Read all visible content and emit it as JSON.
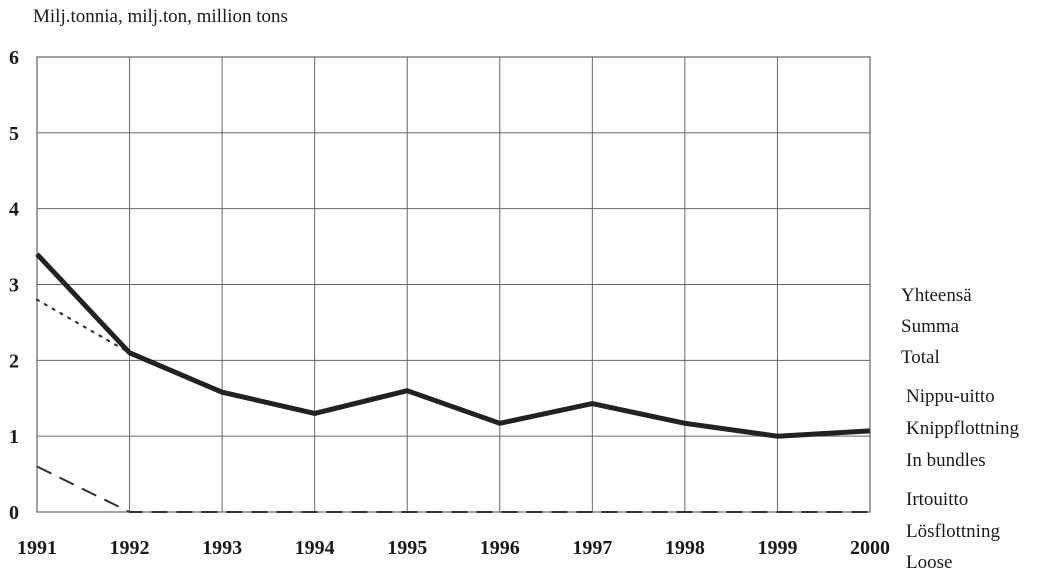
{
  "chart_data": {
    "type": "line",
    "unit_label": "Milj.tonnia, milj.ton, million tons",
    "x": [
      "1991",
      "1992",
      "1993",
      "1994",
      "1995",
      "1996",
      "1997",
      "1998",
      "1999",
      "2000"
    ],
    "yticks": [
      "0",
      "1",
      "2",
      "3",
      "4",
      "5",
      "6"
    ],
    "ylim": [
      0,
      6
    ],
    "grid": true,
    "series": [
      {
        "key": "total",
        "values": [
          3.4,
          2.1,
          1.58,
          1.3,
          1.6,
          1.17,
          1.43,
          1.17,
          1.0,
          1.07
        ],
        "style": "solid-thick",
        "color": "#222222"
      },
      {
        "key": "bundles",
        "values": [
          2.8,
          2.1,
          null,
          null,
          null,
          null,
          null,
          null,
          null,
          null
        ],
        "style": "dotted",
        "color": "#333333"
      },
      {
        "key": "loose",
        "values": [
          0.6,
          0.0,
          0.0,
          0.0,
          0.0,
          0.0,
          0.0,
          0.0,
          0.0,
          0.0
        ],
        "style": "dashed",
        "color": "#333333"
      }
    ],
    "legend": [
      {
        "key": "total",
        "lines": [
          "Yhteensä",
          "Summa",
          "Total"
        ]
      },
      {
        "key": "bundles",
        "lines": [
          "Nippu-uitto",
          "Knippflottning",
          "In bundles"
        ]
      },
      {
        "key": "loose",
        "lines": [
          "Irtouitto",
          "Lösflottning",
          "Loose"
        ]
      }
    ],
    "legend_placement": "right"
  }
}
